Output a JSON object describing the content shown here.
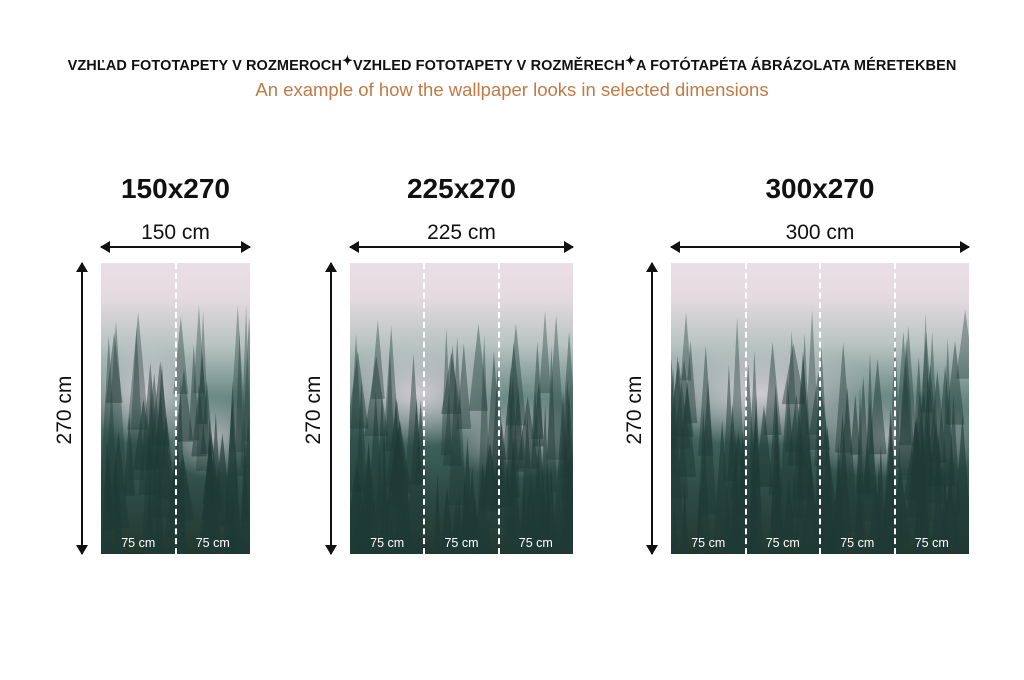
{
  "header": {
    "parts": [
      "VZHĽAD FOTOTAPETY V ROZMEROCH",
      "VZHLED FOTOTAPETY V ROZMĚRECH",
      "A FOTÓTAPÉTA ÁBRÁZOLATA MÉRETEKBEN"
    ],
    "separator": "✦",
    "subtitle": "An example of how the wallpaper looks in selected dimensions",
    "subtitle_color": "#c07a45"
  },
  "panels": [
    {
      "title": "150x270",
      "width_label": "150 cm",
      "height_label": "270 cm",
      "segments": [
        "75 cm",
        "75 cm"
      ]
    },
    {
      "title": "225x270",
      "width_label": "225 cm",
      "height_label": "270 cm",
      "segments": [
        "75 cm",
        "75 cm",
        "75 cm"
      ]
    },
    {
      "title": "300x270",
      "width_label": "300 cm",
      "height_label": "270 cm",
      "segments": [
        "75 cm",
        "75 cm",
        "75 cm",
        "75 cm"
      ]
    }
  ]
}
